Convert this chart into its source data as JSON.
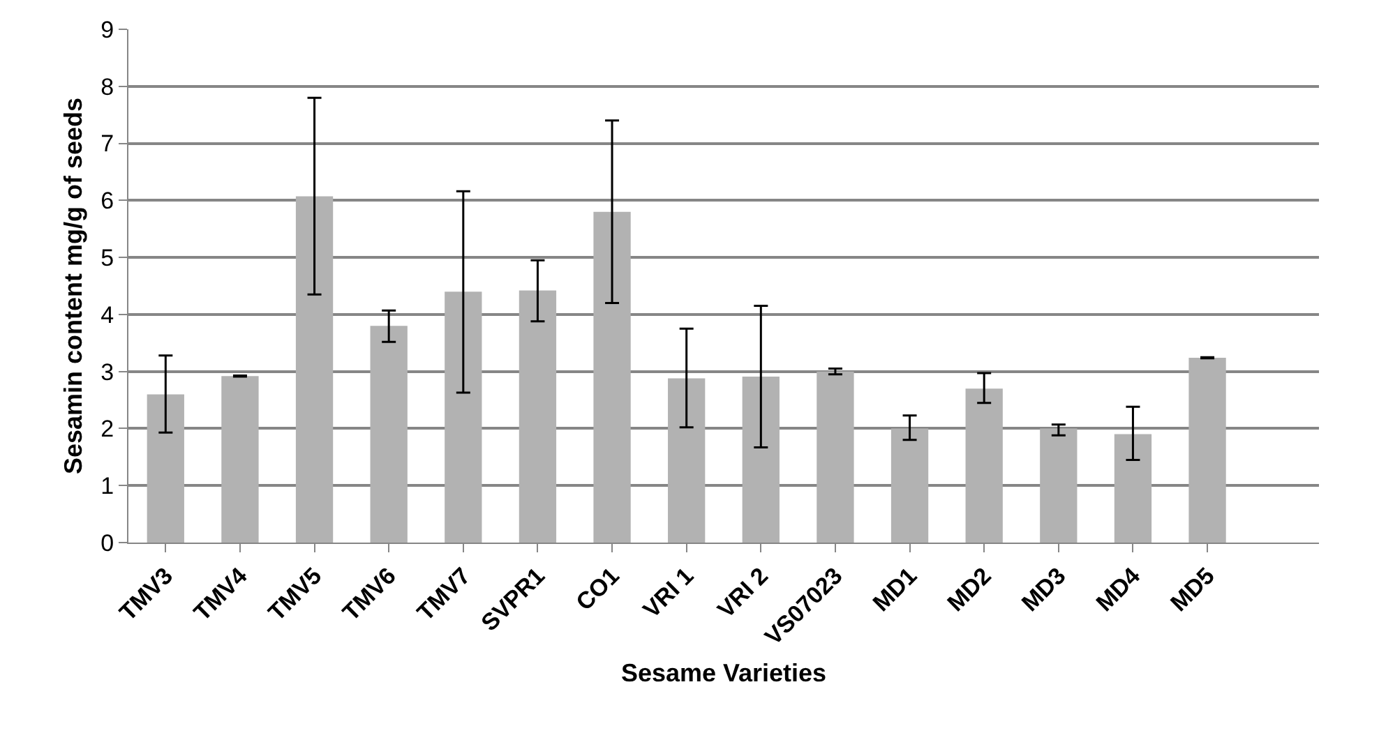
{
  "chart_data": {
    "type": "bar",
    "xlabel": "Sesame Varieties",
    "ylabel": "Sesamin content mg/g of seeds",
    "categories": [
      "TMV3",
      "TMV4",
      "TMV5",
      "TMV6",
      "TMV7",
      "SVPR1",
      "CO1",
      "VRI 1",
      "VRI 2",
      "VS07023",
      "MD1",
      "MD2",
      "MD3",
      "MD4",
      "MD5",
      null
    ],
    "values": [
      2.6,
      2.92,
      6.07,
      3.8,
      4.4,
      4.42,
      5.8,
      2.88,
      2.91,
      3.0,
      2.0,
      2.7,
      2.0,
      1.9,
      3.24,
      null
    ],
    "errors": [
      [
        1.93,
        3.28
      ],
      [
        2.91,
        2.93
      ],
      [
        4.35,
        7.8
      ],
      [
        3.52,
        4.07
      ],
      [
        2.63,
        6.16
      ],
      [
        3.88,
        4.95
      ],
      [
        4.2,
        7.4
      ],
      [
        2.02,
        3.75
      ],
      [
        1.67,
        4.15
      ],
      [
        2.95,
        3.05
      ],
      [
        1.8,
        2.23
      ],
      [
        2.45,
        2.97
      ],
      [
        1.88,
        2.07
      ],
      [
        1.45,
        2.38
      ],
      [
        3.23,
        3.25
      ],
      null
    ],
    "color": "#b2b2b2",
    "ylim": [
      0,
      9
    ],
    "yticks": [
      0,
      1,
      2,
      3,
      4,
      5,
      6,
      7,
      8,
      9
    ],
    "grid": "y",
    "legend": false
  }
}
